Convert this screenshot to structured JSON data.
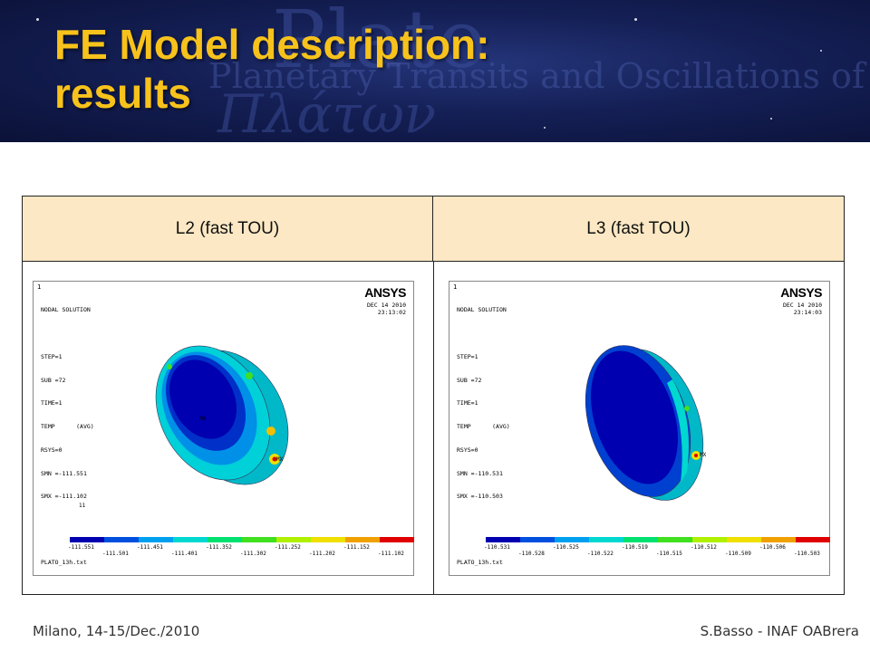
{
  "banner": {
    "title_line1": "FE Model description:",
    "title_line2": "results",
    "bg_text_main": "Plato",
    "bg_text_sub": "Planetary Transits and Oscillations of stars",
    "bg_text_greek": "Πλάτων"
  },
  "table": {
    "headers": [
      "L2 (fast TOU)",
      "L3 (fast TOU)"
    ]
  },
  "plots": [
    {
      "index": "1",
      "info": [
        "NODAL SOLUTION",
        "",
        "STEP=1",
        "SUB =72",
        "TIME=1",
        "TEMP      (AVG)",
        "RSYS=0",
        "SMN =-111.551",
        "SMX =-111.102"
      ],
      "logo": "ANSYS",
      "date": [
        "DEC 14 2010",
        "23:13:02"
      ],
      "marker_mn": "MN",
      "marker_mx": "MX",
      "axis_label": "11",
      "legend_top": [
        "-111.551",
        "-111.451",
        "-111.352",
        "-111.252",
        "-111.152"
      ],
      "legend_bottom": [
        "-111.501",
        "-111.401",
        "-111.302",
        "-111.202",
        "-111.102"
      ],
      "file": "PLATO_13h.txt"
    },
    {
      "index": "1",
      "info": [
        "NODAL SOLUTION",
        "",
        "STEP=1",
        "SUB =72",
        "TIME=1",
        "TEMP      (AVG)",
        "RSYS=0",
        "SMN =-110.531",
        "SMX =-110.503"
      ],
      "logo": "ANSYS",
      "date": [
        "DEC 14 2010",
        "23:14:03"
      ],
      "marker_mx": "MX",
      "legend_top": [
        "-110.531",
        "-110.525",
        "-110.519",
        "-110.512",
        "-110.506"
      ],
      "legend_bottom": [
        "-110.528",
        "-110.522",
        "-110.515",
        "-110.509",
        "-110.503"
      ],
      "file": "PLATO_13h.txt"
    }
  ],
  "colormap": [
    "#0000b0",
    "#0050e0",
    "#00a0f0",
    "#00d8d0",
    "#00e070",
    "#40e020",
    "#b0f000",
    "#f0e000",
    "#f0a000",
    "#e00000"
  ],
  "footer": {
    "left": "Milano, 14-15/Dec./2010",
    "right": "S.Basso - INAF OABrera"
  }
}
